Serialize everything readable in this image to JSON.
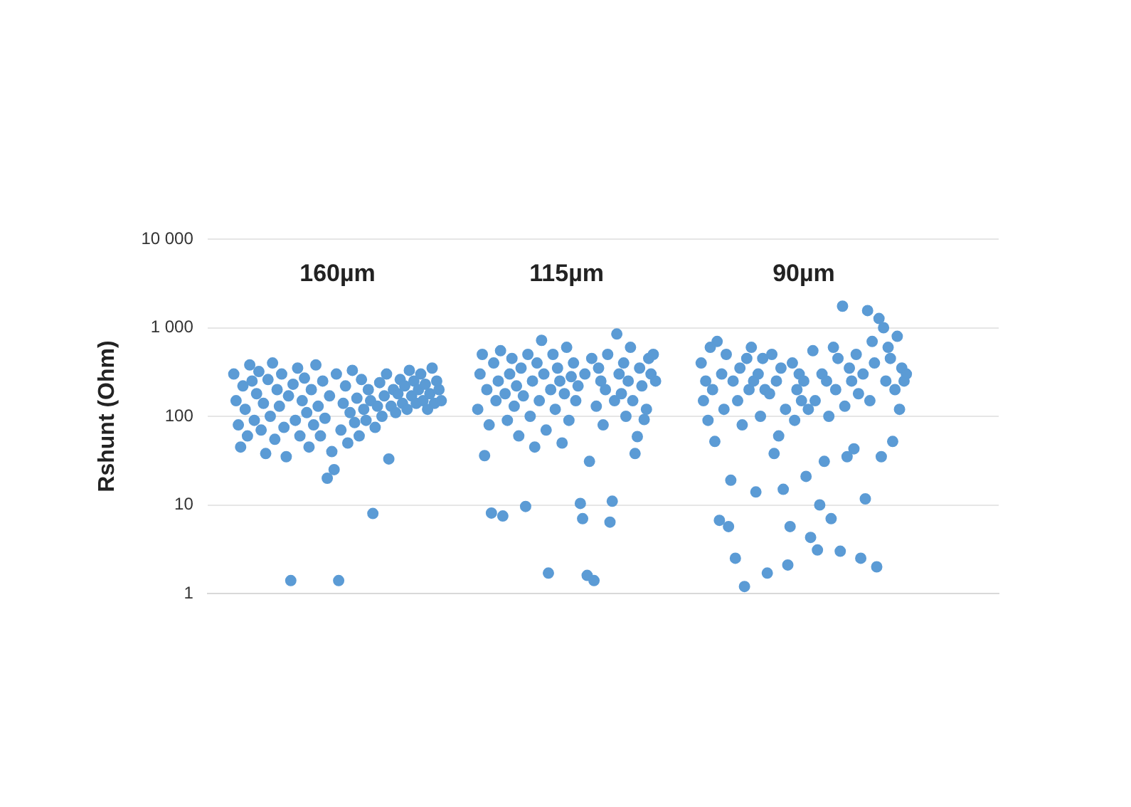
{
  "chart_data": {
    "type": "scatter",
    "ylabel": "Rshunt (Ohm)",
    "color": "#5b9bd5",
    "marker": "circle",
    "log": "y",
    "grid": "y",
    "tick_labels": "y",
    "ylim": [
      1,
      10000
    ],
    "yticks": [
      1,
      10,
      100,
      {
        "value": 1000,
        "label": "1 000"
      },
      {
        "value": 10000,
        "label": "10 000"
      }
    ],
    "annotations": [
      "160µm",
      "115µm",
      "90µm"
    ],
    "categories": [
      null,
      null,
      null,
      null,
      null,
      null,
      null,
      null,
      null,
      null,
      null,
      null,
      null,
      null,
      null,
      null,
      null,
      null,
      null,
      null,
      null,
      null,
      null,
      null,
      null,
      null,
      null,
      null,
      null,
      null,
      null,
      null,
      null,
      null,
      null,
      null,
      null,
      null,
      null,
      null,
      null,
      null,
      null,
      null,
      null,
      null,
      null,
      null,
      null,
      null,
      null,
      null,
      null,
      null,
      null,
      null,
      null,
      null,
      null,
      null,
      null,
      null,
      null,
      null,
      null,
      null,
      null,
      null,
      null,
      null,
      null,
      null,
      null,
      null,
      null,
      null,
      null,
      null,
      null,
      null,
      null,
      null,
      null,
      null,
      null,
      null,
      null,
      null,
      null,
      null,
      null,
      null,
      null,
      null,
      null,
      null,
      null,
      null,
      null,
      null,
      null,
      null,
      null,
      null,
      null,
      null,
      null,
      null,
      null,
      null,
      null,
      null,
      null,
      null,
      null,
      null,
      null,
      null,
      null,
      null,
      null,
      null,
      null,
      null,
      null,
      null,
      null,
      null,
      null,
      null,
      null,
      null,
      null,
      null,
      null,
      null,
      null,
      null,
      null,
      null,
      null,
      null,
      null,
      null,
      null,
      null,
      null,
      null,
      null,
      null,
      null,
      null,
      null,
      null,
      null,
      null,
      null,
      null,
      null,
      null,
      null,
      null,
      null,
      null,
      null,
      null,
      null,
      null,
      null,
      null,
      null,
      null,
      null,
      null,
      null,
      null,
      null,
      null,
      null,
      null,
      null,
      null,
      null,
      null,
      null,
      null,
      null,
      null,
      null,
      null,
      null,
      null,
      null,
      null,
      null,
      null,
      null,
      null,
      null,
      null,
      null,
      null,
      null,
      null,
      null,
      null,
      null,
      null,
      null,
      null,
      null,
      null,
      null,
      null,
      null,
      null,
      null,
      null,
      null,
      null,
      null,
      null,
      null,
      null,
      null,
      null,
      null,
      null,
      null,
      null,
      null,
      null,
      null,
      null,
      null,
      null,
      null,
      null,
      null,
      null,
      null,
      null,
      null,
      null,
      null,
      null,
      null,
      null,
      null,
      null,
      null,
      null,
      null,
      null,
      null,
      null,
      null,
      null,
      null,
      null,
      null,
      null,
      null,
      null,
      null,
      null,
      null,
      null,
      null,
      null,
      null,
      null,
      null,
      null,
      null,
      null,
      null,
      null,
      null,
      null,
      null,
      null,
      null,
      null,
      null,
      null,
      null,
      null,
      null,
      null,
      null,
      null,
      null,
      null,
      null,
      null,
      null,
      null,
      null,
      null,
      null,
      null,
      null,
      null,
      null,
      null,
      null,
      null,
      null,
      null,
      null,
      null,
      null,
      null,
      null,
      null,
      null,
      null,
      null,
      null,
      null,
      null,
      null,
      null,
      null,
      null,
      null,
      null,
      null,
      null,
      null,
      null,
      null,
      null,
      null,
      null,
      null,
      null,
      null,
      null,
      null,
      null,
      null,
      null,
      null,
      null,
      null
    ],
    "values": [
      null,
      null,
      null,
      null,
      null,
      null,
      null,
      null,
      null,
      null,
      null,
      300,
      150,
      80,
      45,
      220,
      120,
      60,
      380,
      250,
      90,
      180,
      320,
      70,
      140,
      38,
      260,
      100,
      400,
      55,
      200,
      130,
      300,
      75,
      35,
      170,
      1.4,
      230,
      90,
      350,
      60,
      150,
      270,
      110,
      45,
      200,
      80,
      380,
      130,
      60,
      250,
      95,
      20,
      170,
      40,
      25,
      300,
      1.4,
      70,
      140,
      220,
      50,
      110,
      330,
      85,
      160,
      60,
      260,
      120,
      90,
      200,
      150,
      8,
      75,
      130,
      240,
      100,
      170,
      300,
      33,
      130,
      200,
      110,
      180,
      260,
      140,
      220,
      120,
      330,
      170,
      250,
      140,
      200,
      300,
      150,
      230,
      120,
      180,
      350,
      140,
      250,
      200,
      150,
      null,
      null,
      null,
      null,
      null,
      null,
      null,
      null,
      null,
      null,
      null,
      null,
      null,
      null,
      null,
      120,
      300,
      500,
      36,
      200,
      80,
      8.1,
      400,
      150,
      250,
      550,
      7.5,
      180,
      90,
      300,
      450,
      130,
      220,
      60,
      350,
      170,
      9.6,
      500,
      100,
      250,
      45,
      400,
      150,
      720,
      300,
      70,
      1.7,
      200,
      500,
      120,
      350,
      250,
      50,
      180,
      600,
      90,
      280,
      400,
      150,
      220,
      10.4,
      7,
      300,
      1.6,
      31,
      450,
      1.4,
      130,
      350,
      250,
      80,
      200,
      500,
      6.4,
      11,
      150,
      850,
      300,
      180,
      400,
      100,
      250,
      600,
      150,
      38,
      59,
      350,
      220,
      92,
      120,
      450,
      300,
      500,
      250,
      null,
      null,
      null,
      null,
      null,
      null,
      null,
      null,
      null,
      null,
      null,
      null,
      null,
      null,
      null,
      null,
      null,
      null,
      null,
      400,
      150,
      250,
      90,
      600,
      200,
      52,
      700,
      6.7,
      300,
      120,
      500,
      5.7,
      19,
      250,
      2.5,
      150,
      350,
      80,
      1.2,
      450,
      200,
      600,
      250,
      14,
      300,
      100,
      450,
      200,
      1.7,
      180,
      500,
      38,
      250,
      60,
      350,
      15,
      120,
      2.1,
      5.7,
      400,
      90,
      200,
      300,
      150,
      250,
      21,
      120,
      4.3,
      550,
      150,
      3.1,
      10,
      300,
      31,
      250,
      100,
      7,
      600,
      200,
      450,
      3,
      1750,
      130,
      35,
      350,
      250,
      43,
      500,
      180,
      2.5,
      300,
      11.7,
      1560,
      150,
      700,
      400,
      2,
      1270,
      35,
      1000,
      250,
      600,
      450,
      52,
      200,
      800,
      120,
      350,
      250,
      300,
      null,
      null,
      null,
      null,
      null,
      null,
      null,
      null,
      null,
      null,
      null,
      null,
      null,
      null,
      null,
      null,
      null,
      null,
      null,
      null,
      null,
      null,
      null,
      null,
      null,
      null,
      null,
      null,
      null,
      null,
      null,
      null,
      null,
      null,
      null,
      null,
      null,
      null,
      null,
      null
    ]
  }
}
